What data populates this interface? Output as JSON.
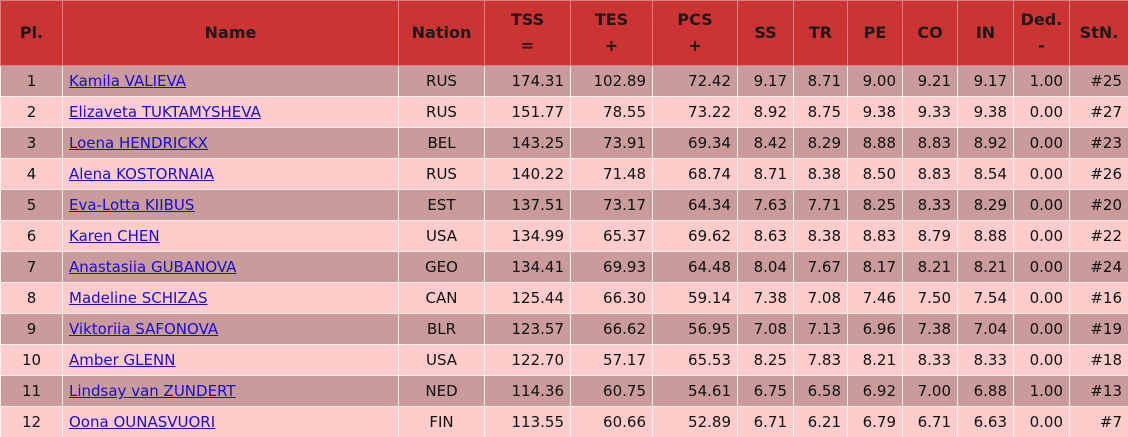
{
  "table": {
    "header": [
      [
        "Pl."
      ],
      [
        "Name"
      ],
      [
        "Nation"
      ],
      [
        "TSS",
        "="
      ],
      [
        "TES",
        "+"
      ],
      [
        "PCS",
        "+"
      ],
      [
        "SS"
      ],
      [
        "TR"
      ],
      [
        "PE"
      ],
      [
        "CO"
      ],
      [
        "IN"
      ],
      [
        "Ded.",
        "-"
      ],
      [
        "StN."
      ]
    ],
    "rows": [
      [
        "1",
        "Kamila VALIEVA",
        "RUS",
        "174.31",
        "102.89",
        "72.42",
        "9.17",
        "8.71",
        "9.00",
        "9.21",
        "9.17",
        "1.00",
        "#25"
      ],
      [
        "2",
        "Elizaveta TUKTAMYSHEVA",
        "RUS",
        "151.77",
        "78.55",
        "73.22",
        "8.92",
        "8.75",
        "9.38",
        "9.33",
        "9.38",
        "0.00",
        "#27"
      ],
      [
        "3",
        "Loena HENDRICKX",
        "BEL",
        "143.25",
        "73.91",
        "69.34",
        "8.42",
        "8.29",
        "8.88",
        "8.83",
        "8.92",
        "0.00",
        "#23"
      ],
      [
        "4",
        "Alena KOSTORNAIA",
        "RUS",
        "140.22",
        "71.48",
        "68.74",
        "8.71",
        "8.38",
        "8.50",
        "8.83",
        "8.54",
        "0.00",
        "#26"
      ],
      [
        "5",
        "Eva-Lotta KIIBUS",
        "EST",
        "137.51",
        "73.17",
        "64.34",
        "7.63",
        "7.71",
        "8.25",
        "8.33",
        "8.29",
        "0.00",
        "#20"
      ],
      [
        "6",
        "Karen CHEN",
        "USA",
        "134.99",
        "65.37",
        "69.62",
        "8.63",
        "8.38",
        "8.83",
        "8.79",
        "8.88",
        "0.00",
        "#22"
      ],
      [
        "7",
        "Anastasiia GUBANOVA",
        "GEO",
        "134.41",
        "69.93",
        "64.48",
        "8.04",
        "7.67",
        "8.17",
        "8.21",
        "8.21",
        "0.00",
        "#24"
      ],
      [
        "8",
        "Madeline SCHIZAS",
        "CAN",
        "125.44",
        "66.30",
        "59.14",
        "7.38",
        "7.08",
        "7.46",
        "7.50",
        "7.54",
        "0.00",
        "#16"
      ],
      [
        "9",
        "Viktoriia SAFONOVA",
        "BLR",
        "123.57",
        "66.62",
        "56.95",
        "7.08",
        "7.13",
        "6.96",
        "7.38",
        "7.04",
        "0.00",
        "#19"
      ],
      [
        "10",
        "Amber GLENN",
        "USA",
        "122.70",
        "57.17",
        "65.53",
        "8.25",
        "7.83",
        "8.21",
        "8.33",
        "8.33",
        "0.00",
        "#18"
      ],
      [
        "11",
        "Lindsay van ZUNDERT",
        "NED",
        "114.36",
        "60.75",
        "54.61",
        "6.75",
        "6.58",
        "6.92",
        "7.00",
        "6.88",
        "1.00",
        "#13"
      ],
      [
        "12",
        "Oona OUNASVUORI",
        "FIN",
        "113.55",
        "60.66",
        "52.89",
        "6.71",
        "6.21",
        "6.79",
        "6.71",
        "6.63",
        "0.00",
        "#7"
      ]
    ]
  }
}
